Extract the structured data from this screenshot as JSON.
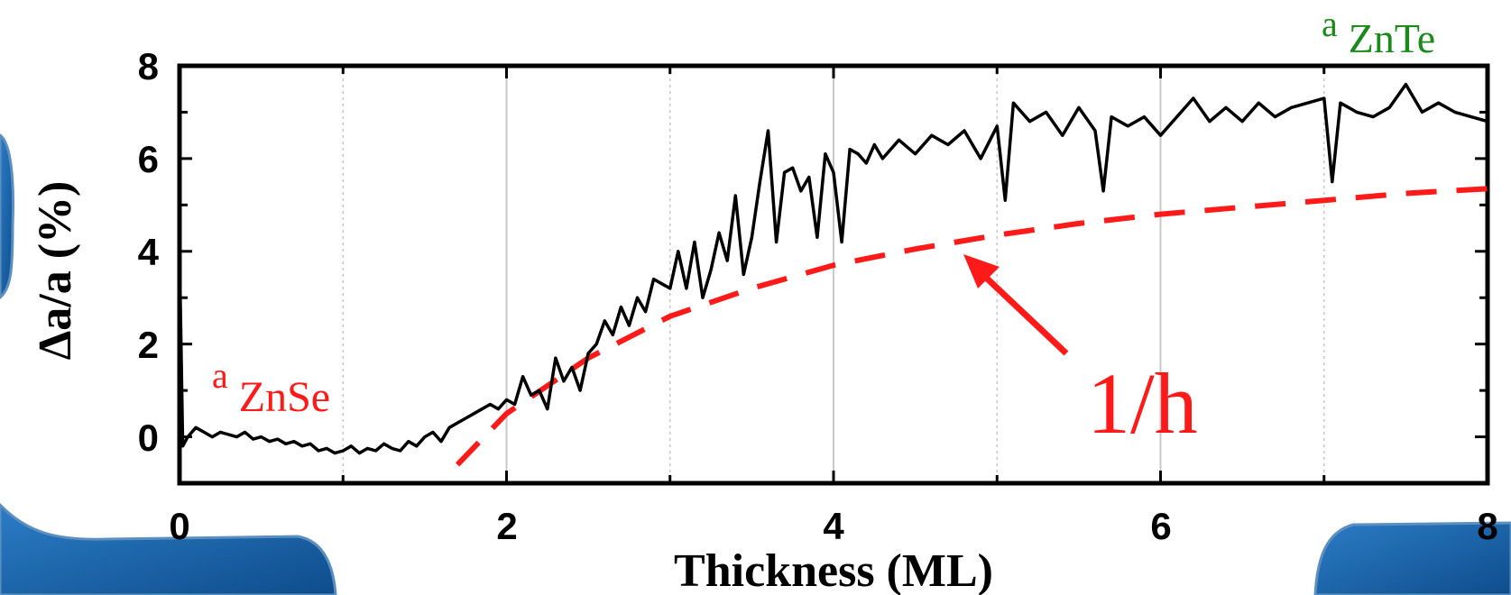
{
  "chart_data": {
    "type": "line",
    "xlabel": "Thickness (ML)",
    "ylabel": "Δa/a (%)",
    "xlim": [
      0,
      8
    ],
    "ylim": [
      -1,
      8
    ],
    "x_major_ticks": [
      0,
      2,
      4,
      6,
      8
    ],
    "y_major_ticks": [
      0,
      2,
      4,
      6,
      8
    ],
    "x_tick_labels": [
      "0",
      "2",
      "4",
      "6",
      "8"
    ],
    "y_tick_labels": [
      "0",
      "2",
      "4",
      "6",
      "8"
    ],
    "vertical_gridlines": [
      1,
      2,
      3,
      4,
      5,
      6,
      7
    ],
    "series": [
      {
        "role": "measured",
        "color": "#000000",
        "style": "solid",
        "x": [
          0,
          0.02,
          0.05,
          0.1,
          0.15,
          0.2,
          0.25,
          0.3,
          0.35,
          0.4,
          0.45,
          0.5,
          0.55,
          0.6,
          0.65,
          0.7,
          0.75,
          0.8,
          0.85,
          0.9,
          0.95,
          1.0,
          1.05,
          1.1,
          1.15,
          1.2,
          1.25,
          1.3,
          1.35,
          1.4,
          1.45,
          1.5,
          1.55,
          1.6,
          1.65,
          1.7,
          1.75,
          1.8,
          1.85,
          1.9,
          1.95,
          2.0,
          2.05,
          2.1,
          2.15,
          2.2,
          2.25,
          2.3,
          2.35,
          2.4,
          2.45,
          2.5,
          2.55,
          2.6,
          2.65,
          2.7,
          2.75,
          2.8,
          2.85,
          2.9,
          2.95,
          3.0,
          3.05,
          3.1,
          3.15,
          3.2,
          3.25,
          3.3,
          3.35,
          3.4,
          3.45,
          3.5,
          3.55,
          3.6,
          3.65,
          3.7,
          3.75,
          3.8,
          3.85,
          3.9,
          3.95,
          4.0,
          4.05,
          4.1,
          4.15,
          4.2,
          4.25,
          4.3,
          4.4,
          4.5,
          4.6,
          4.7,
          4.8,
          4.9,
          5.0,
          5.05,
          5.1,
          5.2,
          5.3,
          5.4,
          5.5,
          5.6,
          5.65,
          5.7,
          5.8,
          5.9,
          6.0,
          6.1,
          6.2,
          6.3,
          6.4,
          6.5,
          6.6,
          6.7,
          6.8,
          6.9,
          7.0,
          7.05,
          7.1,
          7.2,
          7.3,
          7.4,
          7.5,
          7.6,
          7.7,
          7.8,
          7.9,
          8.0
        ],
        "y": [
          4.0,
          -0.2,
          0.0,
          0.2,
          0.1,
          0.0,
          0.1,
          0.05,
          0.0,
          0.1,
          -0.05,
          0.0,
          -0.1,
          -0.05,
          -0.15,
          -0.1,
          -0.2,
          -0.15,
          -0.3,
          -0.25,
          -0.35,
          -0.3,
          -0.2,
          -0.35,
          -0.25,
          -0.3,
          -0.15,
          -0.25,
          -0.3,
          -0.1,
          -0.2,
          0.0,
          0.1,
          -0.1,
          0.2,
          0.3,
          0.4,
          0.5,
          0.6,
          0.7,
          0.6,
          0.8,
          0.7,
          1.3,
          0.9,
          1.0,
          0.6,
          1.7,
          1.2,
          1.5,
          1.0,
          1.8,
          2.0,
          2.5,
          2.2,
          2.8,
          2.4,
          3.0,
          2.7,
          3.4,
          3.3,
          3.2,
          4.0,
          3.2,
          4.2,
          3.0,
          3.6,
          4.4,
          3.8,
          5.2,
          3.5,
          4.3,
          5.5,
          6.6,
          4.2,
          5.7,
          5.8,
          5.3,
          5.6,
          4.3,
          6.1,
          5.7,
          4.2,
          6.2,
          6.1,
          5.9,
          6.3,
          6.0,
          6.4,
          6.1,
          6.5,
          6.3,
          6.6,
          6.0,
          6.7,
          5.1,
          7.2,
          6.8,
          7.0,
          6.5,
          7.1,
          6.6,
          5.3,
          6.9,
          6.7,
          6.9,
          6.5,
          6.9,
          7.3,
          6.8,
          7.1,
          6.8,
          7.2,
          6.9,
          7.1,
          7.2,
          7.3,
          5.5,
          7.2,
          7.0,
          6.9,
          7.1,
          7.6,
          7.0,
          7.2,
          7.0,
          6.9,
          6.8
        ]
      },
      {
        "role": "fit",
        "color": "#ff1a1a",
        "style": "dashed",
        "x": [
          1.7,
          2.0,
          2.5,
          3.0,
          3.5,
          4.0,
          4.5,
          5.0,
          5.5,
          6.0,
          6.5,
          7.0,
          7.5,
          8.0
        ],
        "y": [
          -0.6,
          0.5,
          1.7,
          2.6,
          3.2,
          3.7,
          4.05,
          4.35,
          4.6,
          4.8,
          4.95,
          5.1,
          5.25,
          5.35
        ]
      }
    ],
    "annotations": {
      "zinc_selenide": {
        "prefix": "a",
        "label": "ZnSe",
        "color": "#ff1a1a"
      },
      "zinc_telluride": {
        "prefix": "a",
        "label": "ZnTe",
        "color": "#1a8a1a"
      },
      "fit_label": {
        "text": "1/h",
        "color": "#ff1a1a"
      }
    },
    "colors": {
      "frame": "#000000",
      "gridline": "#c8c8c8",
      "decor_blue": "#1e5fa0"
    }
  }
}
